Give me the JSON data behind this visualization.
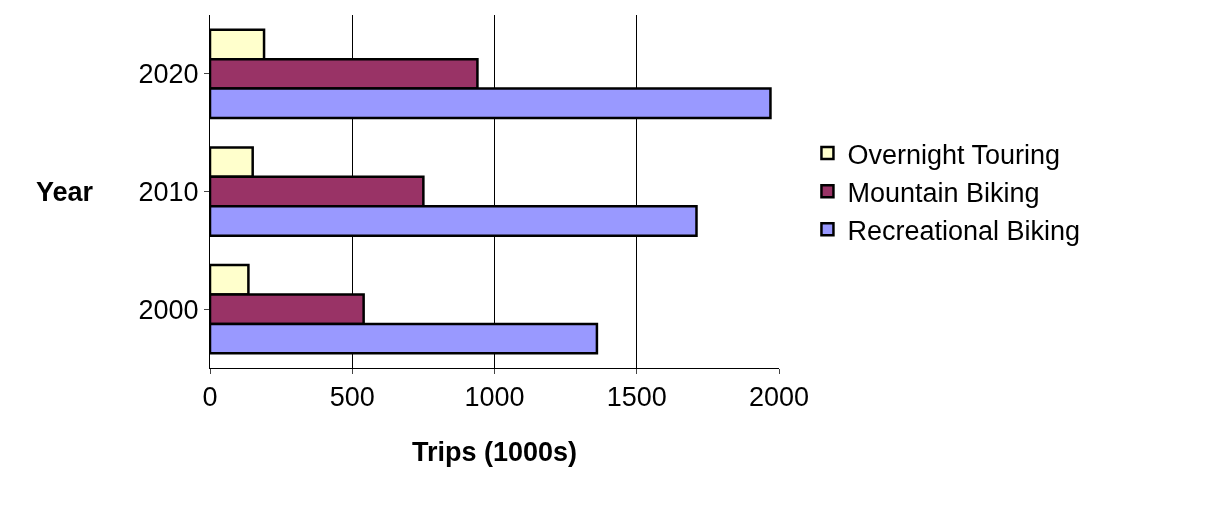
{
  "chart_data": {
    "type": "bar",
    "orientation": "horizontal",
    "categories": [
      "2020",
      "2010",
      "2000"
    ],
    "series": [
      {
        "name": "Recreational Biking",
        "color": "#9999ff",
        "values": [
          1970,
          1710,
          1360
        ]
      },
      {
        "name": "Mountain Biking",
        "color": "#993366",
        "values": [
          940,
          750,
          540
        ]
      },
      {
        "name": "Overnight Touring",
        "color": "#ffffcc",
        "values": [
          190,
          150,
          135
        ]
      }
    ],
    "xlabel": "Trips (1000s)",
    "ylabel": "Year",
    "xlim": [
      0,
      2000
    ],
    "xticks": [
      0,
      500,
      1000,
      1500,
      2000
    ],
    "grid": "x",
    "legend": "right"
  }
}
